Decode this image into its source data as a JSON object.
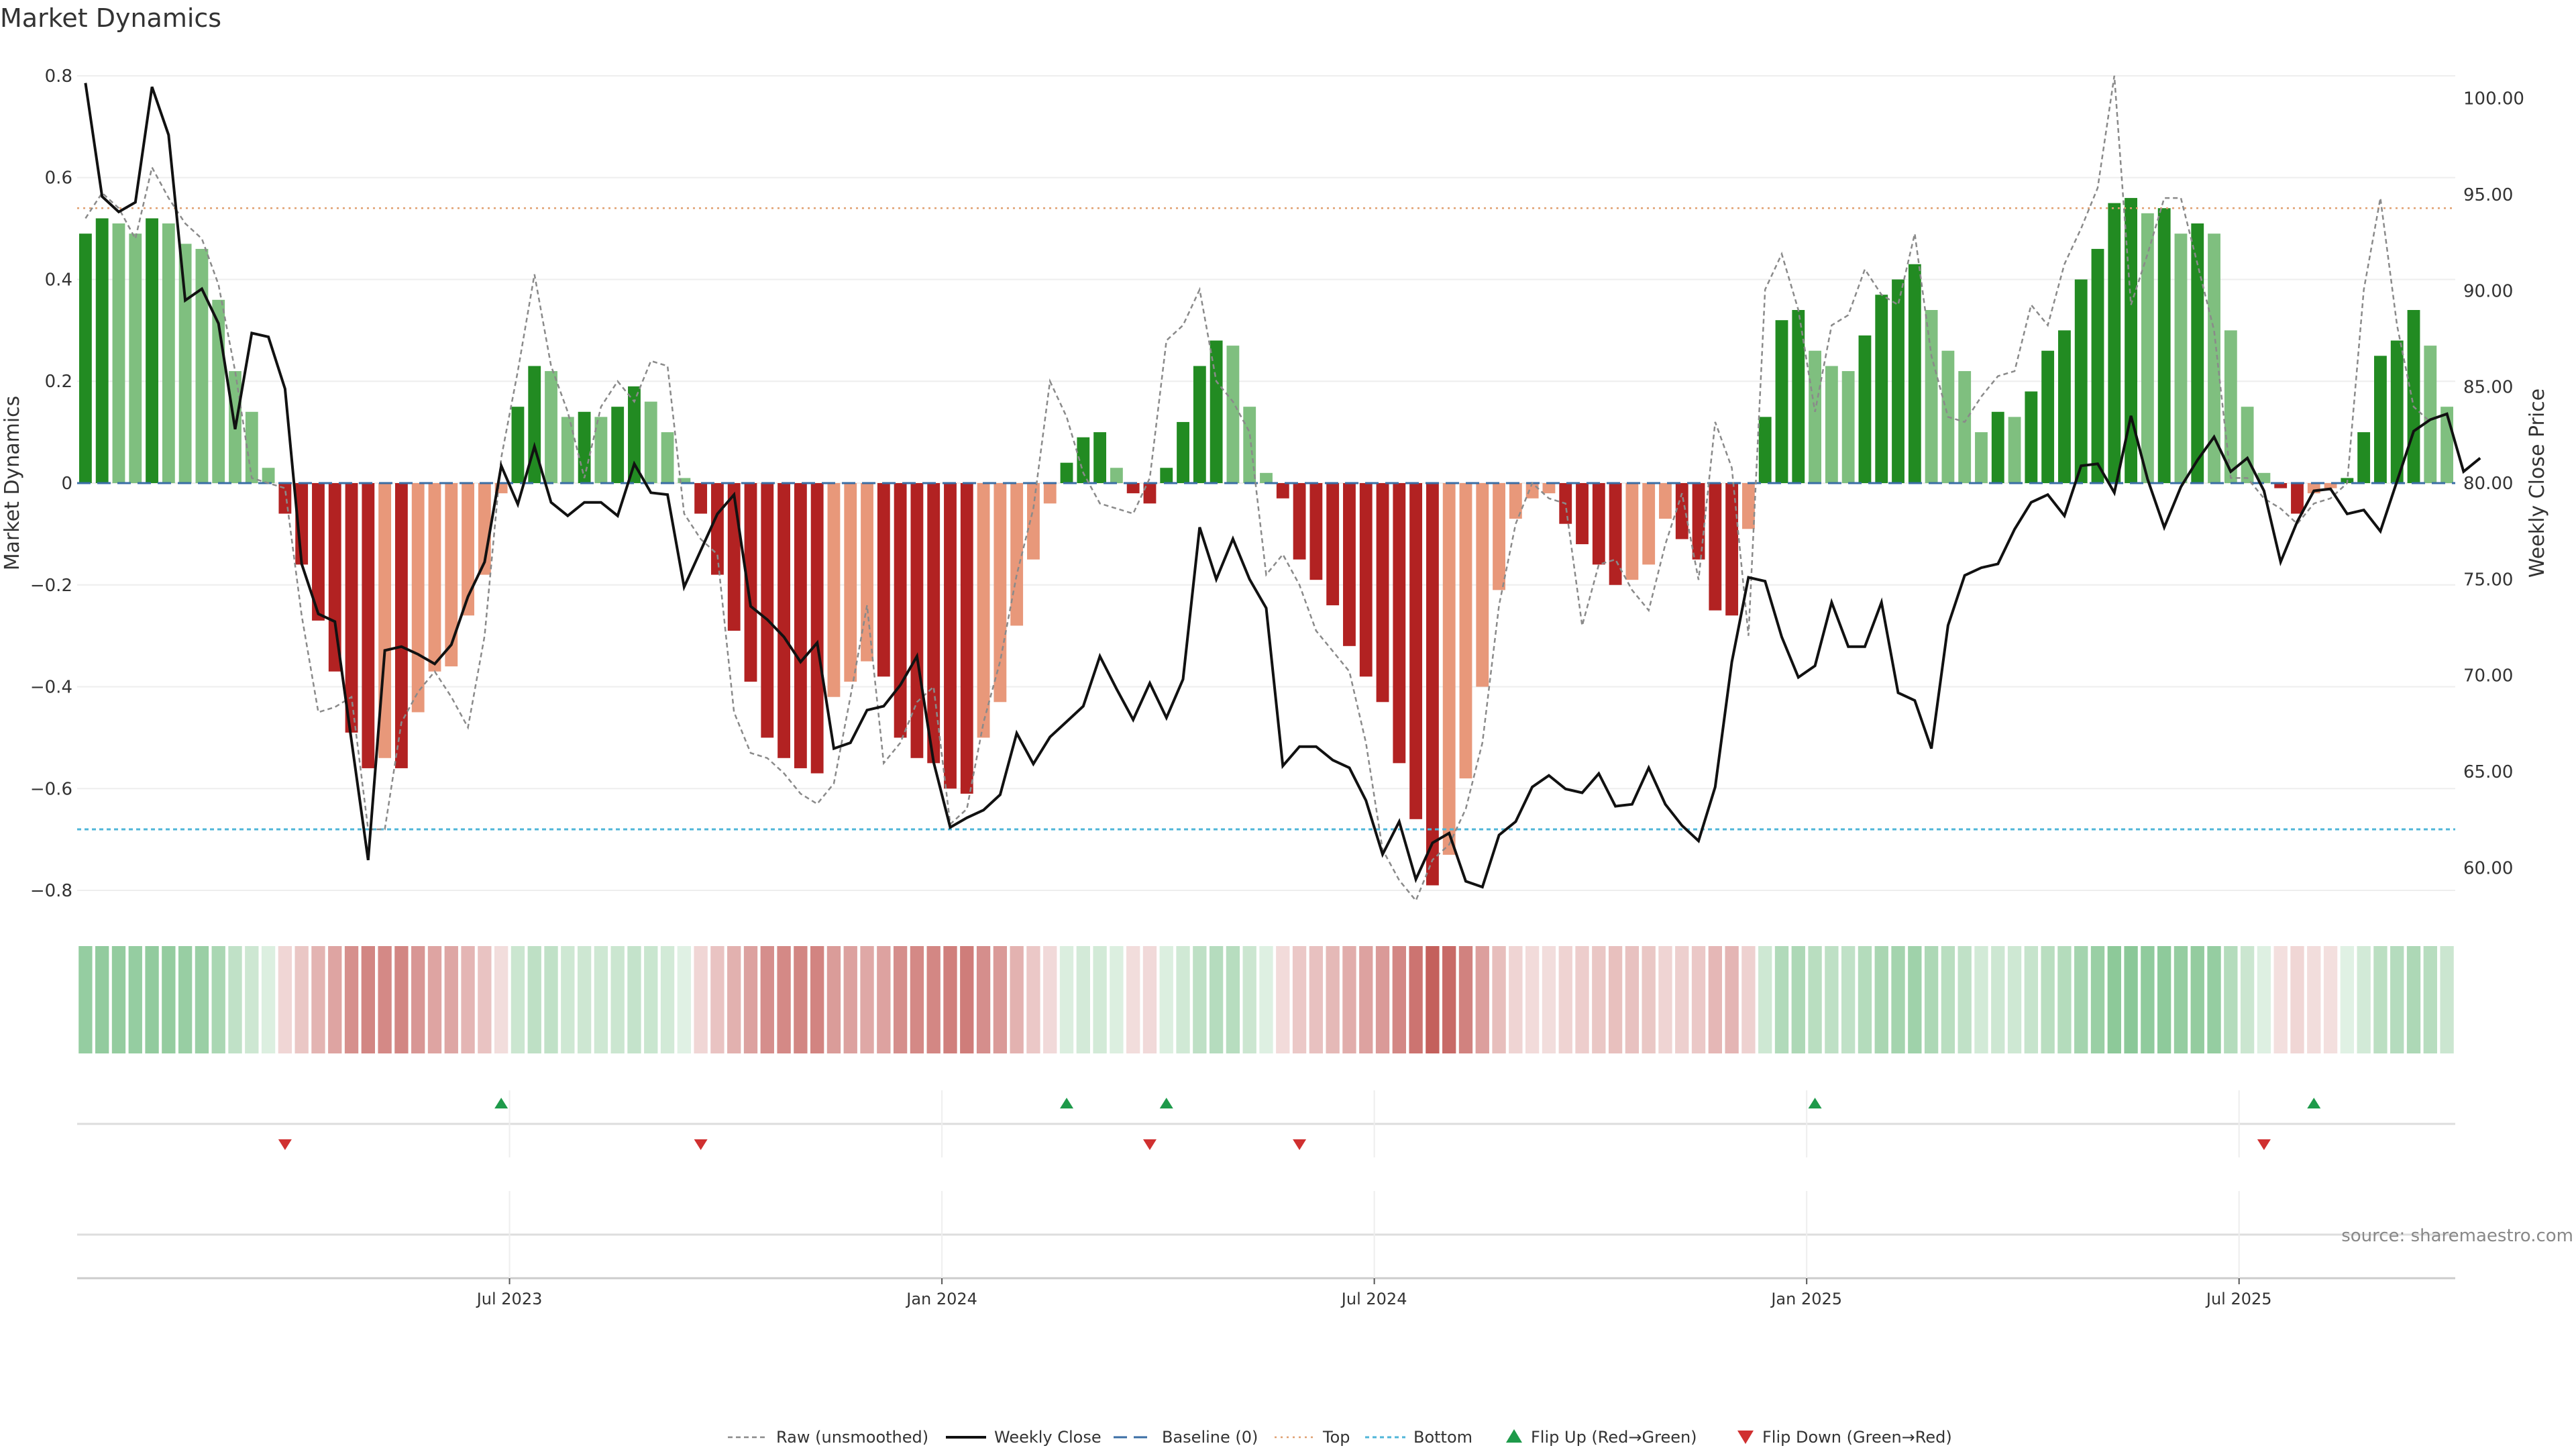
{
  "chart_data": {
    "type": "bar",
    "title": "Market Dynamics",
    "ylabel_left": "Market Dynamics",
    "ylabel_right": "Weekly Close Price",
    "ylim_left": [
      -0.85,
      0.85
    ],
    "ylim_right": [
      57.5,
      102.5
    ],
    "yticks_left": [
      "0.8",
      "0.6",
      "0.4",
      "0.2",
      "0",
      "−0.2",
      "−0.4",
      "−0.6",
      "−0.8"
    ],
    "yticks_left_values": [
      0.8,
      0.6,
      0.4,
      0.2,
      0,
      -0.2,
      -0.4,
      -0.6,
      -0.8
    ],
    "yticks_right": [
      "100.00",
      "95.00",
      "90.00",
      "85.00",
      "80.00",
      "75.00",
      "70.00",
      "65.00",
      "60.00"
    ],
    "yticks_right_values": [
      100,
      95,
      90,
      85,
      80,
      75,
      70,
      65,
      60
    ],
    "x_start": "2023-01-02",
    "x_interval_days": 7,
    "xticks": [
      {
        "label": "Jul 2023",
        "index": 26
      },
      {
        "label": "Jan 2024",
        "index": 52
      },
      {
        "label": "Jul 2024",
        "index": 78
      },
      {
        "label": "Jan 2025",
        "index": 104
      },
      {
        "label": "Jul 2025",
        "index": 130
      }
    ],
    "top_threshold": 0.54,
    "bottom_threshold": -0.68,
    "baseline": 0,
    "smoothed": [
      0.49,
      0.52,
      0.51,
      0.49,
      0.52,
      0.51,
      0.47,
      0.46,
      0.36,
      0.22,
      0.14,
      0.03,
      -0.06,
      -0.16,
      -0.27,
      -0.37,
      -0.49,
      -0.56,
      -0.54,
      -0.56,
      -0.45,
      -0.37,
      -0.36,
      -0.26,
      -0.18,
      -0.02,
      0.15,
      0.23,
      0.22,
      0.13,
      0.14,
      0.13,
      0.15,
      0.19,
      0.16,
      0.1,
      0.01,
      -0.06,
      -0.18,
      -0.29,
      -0.39,
      -0.5,
      -0.54,
      -0.56,
      -0.57,
      -0.42,
      -0.39,
      -0.35,
      -0.38,
      -0.5,
      -0.54,
      -0.55,
      -0.6,
      -0.61,
      -0.5,
      -0.43,
      -0.28,
      -0.15,
      -0.04,
      0.04,
      0.09,
      0.1,
      0.03,
      -0.02,
      -0.04,
      0.03,
      0.12,
      0.23,
      0.28,
      0.27,
      0.15,
      0.02,
      -0.03,
      -0.15,
      -0.19,
      -0.24,
      -0.32,
      -0.38,
      -0.43,
      -0.55,
      -0.66,
      -0.79,
      -0.73,
      -0.58,
      -0.4,
      -0.21,
      -0.07,
      -0.03,
      -0.02,
      -0.08,
      -0.12,
      -0.16,
      -0.2,
      -0.19,
      -0.16,
      -0.07,
      -0.11,
      -0.15,
      -0.25,
      -0.26,
      -0.09,
      0.13,
      0.32,
      0.34,
      0.26,
      0.23,
      0.22,
      0.29,
      0.37,
      0.4,
      0.43,
      0.34,
      0.26,
      0.22,
      0.1,
      0.14,
      0.13,
      0.18,
      0.26,
      0.3,
      0.4,
      0.46,
      0.55,
      0.56,
      0.53,
      0.54,
      0.49,
      0.51,
      0.49,
      0.3,
      0.15,
      0.02,
      -0.01,
      -0.06,
      -0.02,
      -0.01,
      0.01,
      0.1,
      0.25,
      0.28,
      0.34,
      0.27,
      0.15
    ],
    "raw": [
      0.52,
      0.57,
      0.54,
      0.48,
      0.62,
      0.56,
      0.51,
      0.48,
      0.39,
      0.22,
      0.01,
      0.0,
      -0.01,
      -0.26,
      -0.45,
      -0.44,
      -0.42,
      -0.68,
      -0.68,
      -0.47,
      -0.41,
      -0.37,
      -0.42,
      -0.48,
      -0.3,
      0.05,
      0.22,
      0.41,
      0.23,
      0.14,
      0.01,
      0.15,
      0.2,
      0.16,
      0.24,
      0.23,
      -0.06,
      -0.11,
      -0.14,
      -0.45,
      -0.53,
      -0.54,
      -0.57,
      -0.61,
      -0.63,
      -0.59,
      -0.42,
      -0.24,
      -0.55,
      -0.51,
      -0.43,
      -0.4,
      -0.67,
      -0.64,
      -0.47,
      -0.35,
      -0.18,
      -0.05,
      0.2,
      0.13,
      0.02,
      -0.04,
      -0.05,
      -0.06,
      0.01,
      0.28,
      0.31,
      0.38,
      0.2,
      0.16,
      0.1,
      -0.18,
      -0.14,
      -0.2,
      -0.29,
      -0.33,
      -0.37,
      -0.51,
      -0.72,
      -0.78,
      -0.82,
      -0.74,
      -0.71,
      -0.64,
      -0.51,
      -0.24,
      -0.08,
      0.0,
      -0.03,
      -0.04,
      -0.28,
      -0.16,
      -0.15,
      -0.21,
      -0.25,
      -0.12,
      -0.02,
      -0.19,
      0.12,
      0.03,
      -0.3,
      0.38,
      0.45,
      0.34,
      0.14,
      0.31,
      0.33,
      0.42,
      0.37,
      0.35,
      0.49,
      0.25,
      0.13,
      0.12,
      0.17,
      0.21,
      0.22,
      0.35,
      0.31,
      0.43,
      0.5,
      0.58,
      0.8,
      0.35,
      0.45,
      0.56,
      0.56,
      0.43,
      0.3,
      0.01,
      0.01,
      -0.03,
      -0.05,
      -0.08,
      -0.04,
      -0.03,
      0.0,
      0.38,
      0.56,
      0.31,
      0.15,
      0.12
    ],
    "weekly_close": [
      100.8,
      94.9,
      94.1,
      94.6,
      100.6,
      98.1,
      89.5,
      90.1,
      88.3,
      82.8,
      87.8,
      87.6,
      84.9,
      75.8,
      73.2,
      72.8,
      66.6,
      60.4,
      71.3,
      71.5,
      71.1,
      70.6,
      71.6,
      74.1,
      75.9,
      80.9,
      78.9,
      81.9,
      79.0,
      78.3,
      79.0,
      79.0,
      78.3,
      81.0,
      79.5,
      79.4,
      74.6,
      76.5,
      78.4,
      79.4,
      73.6,
      72.9,
      72.0,
      70.7,
      71.7,
      66.2,
      66.5,
      68.2,
      68.4,
      69.5,
      71.0,
      65.5,
      62.1,
      62.6,
      63.0,
      63.8,
      67.0,
      65.4,
      66.8,
      67.6,
      68.4,
      71.0,
      69.3,
      67.7,
      69.6,
      67.8,
      69.8,
      77.7,
      75.0,
      77.1,
      75.0,
      73.5,
      65.3,
      66.3,
      66.3,
      65.6,
      65.2,
      63.5,
      60.7,
      62.4,
      59.4,
      61.3,
      61.8,
      59.3,
      59.0,
      61.7,
      62.4,
      64.2,
      64.8,
      64.1,
      63.9,
      64.9,
      63.2,
      63.3,
      65.2,
      63.3,
      62.2,
      61.4,
      64.2,
      70.7,
      75.1,
      74.9,
      72.0,
      69.9,
      70.5,
      73.8,
      71.5,
      71.5,
      73.8,
      69.1,
      68.7,
      66.2,
      72.6,
      75.2,
      75.6,
      75.8,
      77.6,
      79.0,
      79.4,
      78.3,
      80.9,
      81.0,
      79.5,
      83.5,
      80.2,
      77.7,
      79.8,
      81.2,
      82.4,
      80.6,
      81.3,
      79.6,
      75.9,
      78.0,
      79.6,
      79.7,
      78.4,
      78.6,
      77.5,
      80.1,
      82.7,
      83.3,
      83.6,
      80.6,
      81.3
    ],
    "flip_up_indices": [
      25,
      59,
      65,
      104,
      134
    ],
    "flip_down_indices": [
      12,
      37,
      64,
      73,
      131
    ],
    "legend": [
      "Raw (unsmoothed)",
      "Weekly Close",
      "Baseline (0)",
      "Top",
      "Bottom",
      "Flip Up (Red→Green)",
      "Flip Down (Green→Red)"
    ],
    "legend_position": "bottom-center",
    "annotation": "source: sharemaestro.com"
  }
}
